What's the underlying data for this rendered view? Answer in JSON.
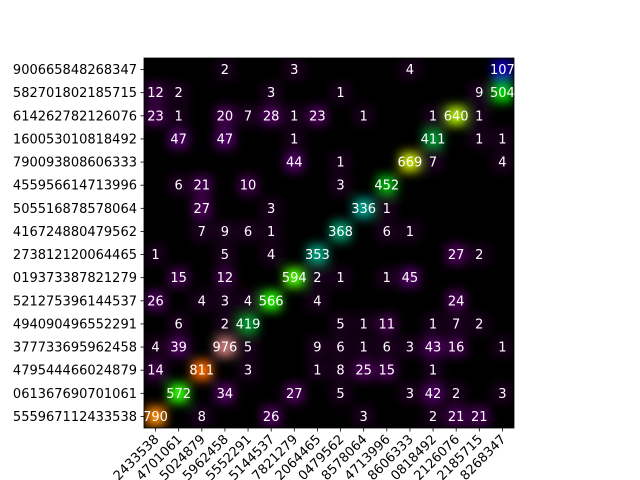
{
  "chart_data": {
    "type": "heatmap",
    "colormap": "nipy_spectral",
    "vmin": 0,
    "vmax": 1000,
    "smoothed": true,
    "labels": [
      "555967112433538",
      "061367690701061",
      "479544466024879",
      "377733695962458",
      "494090496552291",
      "521275396144537",
      "019373387821279",
      "273812120064465",
      "416724880479562",
      "505516878578064",
      "455956614713996",
      "790093808606333",
      "160053010818492",
      "614262782126076",
      "582701802185715",
      "900665848268347"
    ],
    "x_tick_labels_visible": [
      "2433538",
      "4701061",
      "5024879",
      "5962458",
      "5552291",
      "5144537",
      "7821279",
      "2064465",
      "0479562",
      "8578064",
      "4713996",
      "8606333",
      "0818492",
      "2126076",
      "2185715",
      "8268347"
    ],
    "matrix": [
      [
        790,
        0,
        8,
        0,
        0,
        26,
        0,
        0,
        0,
        3,
        0,
        0,
        2,
        21,
        21,
        0
      ],
      [
        0,
        572,
        0,
        34,
        0,
        0,
        27,
        0,
        5,
        0,
        0,
        3,
        42,
        2,
        0,
        3
      ],
      [
        14,
        0,
        811,
        0,
        3,
        0,
        0,
        1,
        8,
        25,
        15,
        0,
        1,
        0,
        0,
        0
      ],
      [
        4,
        39,
        0,
        976,
        5,
        0,
        0,
        9,
        6,
        1,
        6,
        3,
        43,
        16,
        0,
        1
      ],
      [
        0,
        6,
        0,
        2,
        419,
        0,
        0,
        0,
        5,
        1,
        11,
        0,
        1,
        7,
        2,
        0
      ],
      [
        26,
        0,
        4,
        3,
        4,
        566,
        0,
        4,
        0,
        0,
        0,
        0,
        0,
        24,
        0,
        0
      ],
      [
        0,
        15,
        0,
        12,
        0,
        0,
        594,
        2,
        1,
        0,
        1,
        45,
        0,
        0,
        0,
        0
      ],
      [
        1,
        0,
        0,
        5,
        0,
        4,
        0,
        353,
        0,
        0,
        0,
        0,
        0,
        27,
        2,
        0
      ],
      [
        0,
        0,
        7,
        9,
        6,
        1,
        0,
        0,
        368,
        0,
        6,
        1,
        0,
        0,
        0,
        0
      ],
      [
        0,
        0,
        27,
        0,
        0,
        3,
        0,
        0,
        0,
        336,
        1,
        0,
        0,
        0,
        0,
        0
      ],
      [
        0,
        6,
        21,
        0,
        10,
        0,
        0,
        0,
        3,
        0,
        452,
        0,
        0,
        0,
        0,
        0
      ],
      [
        0,
        0,
        0,
        0,
        0,
        0,
        44,
        0,
        1,
        0,
        0,
        669,
        7,
        0,
        0,
        4
      ],
      [
        0,
        47,
        0,
        47,
        0,
        0,
        1,
        0,
        0,
        0,
        0,
        0,
        411,
        0,
        1,
        1
      ],
      [
        23,
        1,
        0,
        20,
        7,
        28,
        1,
        23,
        0,
        1,
        0,
        0,
        1,
        640,
        1,
        0
      ],
      [
        12,
        2,
        0,
        0,
        0,
        3,
        0,
        0,
        1,
        0,
        0,
        0,
        0,
        0,
        9,
        504
      ],
      [
        0,
        0,
        0,
        2,
        0,
        0,
        3,
        0,
        0,
        0,
        0,
        4,
        0,
        0,
        0,
        107
      ]
    ]
  }
}
